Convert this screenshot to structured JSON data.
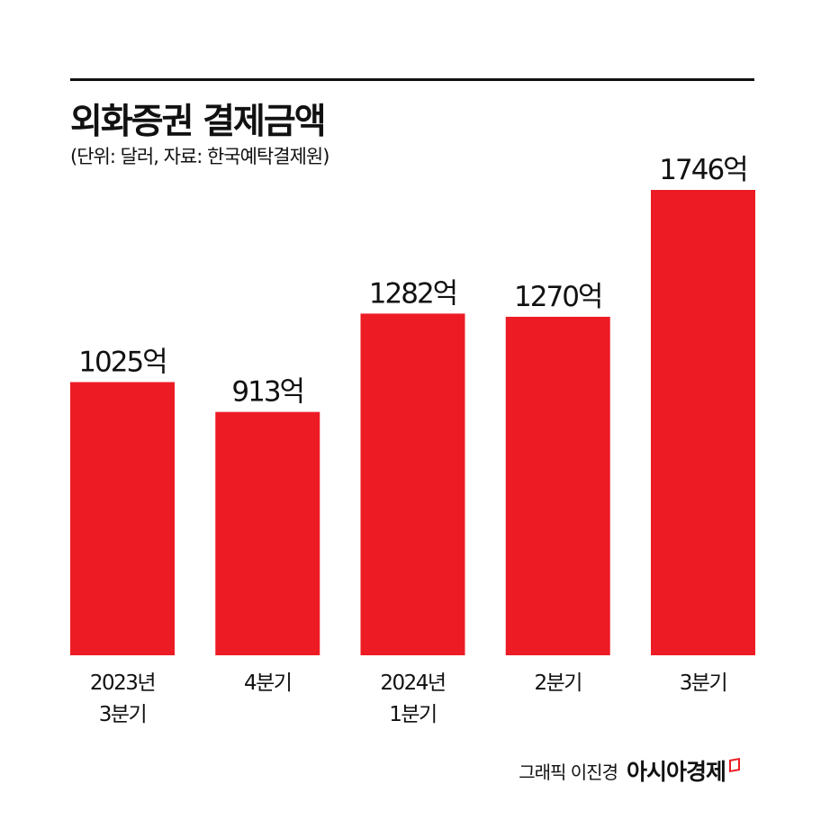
{
  "title": "외화증권 결제금액",
  "subtitle": "(단위: 달러, 자료: 한국예탁결제원)",
  "credit": {
    "byline": "그래픽 이진경",
    "logo": "아시아경제"
  },
  "colors": {
    "bar": "#ed1c24",
    "text": "#111111"
  },
  "chart_data": {
    "type": "bar",
    "title": "외화증권 결제금액",
    "subtitle": "(단위: 달러, 자료: 한국예탁결제원)",
    "categories": [
      [
        "2023년",
        "3분기"
      ],
      [
        "4분기"
      ],
      [
        "2024년",
        "1분기"
      ],
      [
        "2분기"
      ],
      [
        "3분기"
      ]
    ],
    "values": [
      1025,
      913,
      1282,
      1270,
      1746
    ],
    "data_labels": [
      "1025억",
      "913억",
      "1282억",
      "1270억",
      "1746억"
    ],
    "ylim": [
      0,
      1746
    ],
    "grid": false,
    "legend": "none"
  }
}
